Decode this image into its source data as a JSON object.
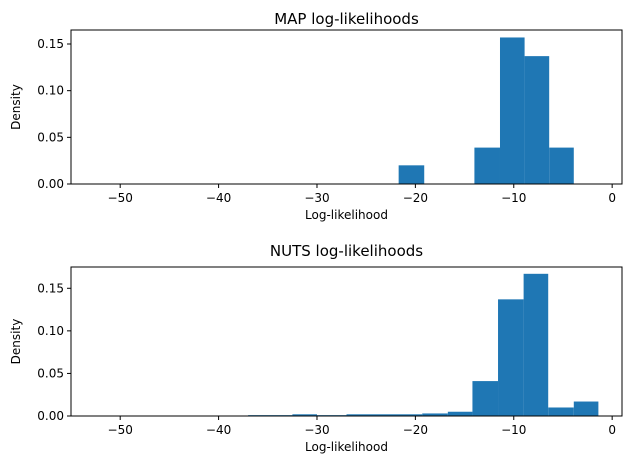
{
  "chart_data": [
    {
      "type": "bar",
      "title": "MAP log-likelihoods",
      "xlabel": "Log-likelihood",
      "ylabel": "Density",
      "xlim": [
        -55,
        1
      ],
      "ylim": [
        0,
        0.165
      ],
      "xticks": [
        -50,
        -40,
        -30,
        -20,
        -10,
        0
      ],
      "xtick_labels": [
        "−50",
        "−40",
        "−30",
        "−20",
        "−10",
        "0"
      ],
      "yticks": [
        0.0,
        0.05,
        0.1,
        0.15
      ],
      "ytick_labels": [
        "0.00",
        "0.05",
        "0.10",
        "0.15"
      ],
      "bar_color": "#1f77b4",
      "bins": [
        {
          "x0": -21.7,
          "x1": -19.1,
          "value": 0.02
        },
        {
          "x0": -14.0,
          "x1": -11.4,
          "value": 0.039
        },
        {
          "x0": -11.4,
          "x1": -8.9,
          "value": 0.157
        },
        {
          "x0": -8.9,
          "x1": -6.4,
          "value": 0.137
        },
        {
          "x0": -6.4,
          "x1": -3.9,
          "value": 0.039
        }
      ]
    },
    {
      "type": "bar",
      "title": "NUTS log-likelihoods",
      "xlabel": "Log-likelihood",
      "ylabel": "Density",
      "xlim": [
        -55,
        1
      ],
      "ylim": [
        0,
        0.175
      ],
      "xticks": [
        -50,
        -40,
        -30,
        -20,
        -10,
        0
      ],
      "xtick_labels": [
        "−50",
        "−40",
        "−30",
        "−20",
        "−10",
        "0"
      ],
      "yticks": [
        0.0,
        0.05,
        0.1,
        0.15
      ],
      "ytick_labels": [
        "0.00",
        "0.05",
        "0.10",
        "0.15"
      ],
      "bar_color": "#1f77b4",
      "bins": [
        {
          "x0": -37.0,
          "x1": -32.5,
          "value": 0.001
        },
        {
          "x0": -32.5,
          "x1": -30.0,
          "value": 0.002
        },
        {
          "x0": -30.0,
          "x1": -27.0,
          "value": 0.001
        },
        {
          "x0": -27.0,
          "x1": -19.3,
          "value": 0.002
        },
        {
          "x0": -19.3,
          "x1": -16.7,
          "value": 0.003
        },
        {
          "x0": -16.7,
          "x1": -14.2,
          "value": 0.005
        },
        {
          "x0": -14.2,
          "x1": -11.6,
          "value": 0.041
        },
        {
          "x0": -11.6,
          "x1": -9.0,
          "value": 0.137
        },
        {
          "x0": -9.0,
          "x1": -6.5,
          "value": 0.167
        },
        {
          "x0": -6.5,
          "x1": -3.9,
          "value": 0.01
        },
        {
          "x0": -3.9,
          "x1": -1.4,
          "value": 0.017
        }
      ]
    }
  ]
}
